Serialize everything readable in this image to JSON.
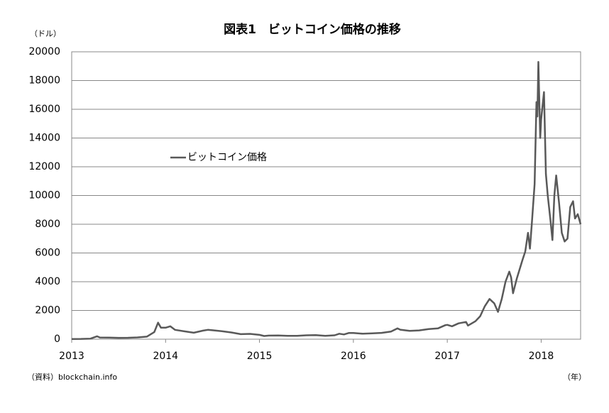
{
  "chart_data": {
    "type": "line",
    "title": "図表1　ビットコイン価格の推移",
    "y_unit": "（ドル）",
    "x_unit": "（年）",
    "source": "（資料）blockchain.info",
    "x": [
      2013.0,
      2013.1,
      2013.2,
      2013.27,
      2013.3,
      2013.4,
      2013.5,
      2013.6,
      2013.7,
      2013.8,
      2013.88,
      2013.92,
      2013.95,
      2014.0,
      2014.05,
      2014.1,
      2014.2,
      2014.3,
      2014.4,
      2014.45,
      2014.5,
      2014.6,
      2014.7,
      2014.8,
      2014.9,
      2015.0,
      2015.05,
      2015.1,
      2015.2,
      2015.3,
      2015.4,
      2015.5,
      2015.6,
      2015.7,
      2015.8,
      2015.85,
      2015.9,
      2015.95,
      2016.0,
      2016.1,
      2016.2,
      2016.3,
      2016.4,
      2016.47,
      2016.5,
      2016.6,
      2016.7,
      2016.8,
      2016.9,
      2016.98,
      2017.0,
      2017.05,
      2017.12,
      2017.2,
      2017.22,
      2017.3,
      2017.35,
      2017.4,
      2017.45,
      2017.5,
      2017.54,
      2017.58,
      2017.62,
      2017.66,
      2017.68,
      2017.7,
      2017.74,
      2017.8,
      2017.83,
      2017.86,
      2017.88,
      2017.9,
      2017.93,
      2017.95,
      2017.96,
      2017.97,
      2017.99,
      2018.0,
      2018.03,
      2018.05,
      2018.07,
      2018.1,
      2018.12,
      2018.14,
      2018.16,
      2018.19,
      2018.22,
      2018.25,
      2018.28,
      2018.31,
      2018.34,
      2018.36,
      2018.39,
      2018.42
    ],
    "series": [
      {
        "name": "ビットコイン価格",
        "color": "#595959",
        "values": [
          13,
          20,
          40,
          200,
          120,
          110,
          95,
          100,
          125,
          180,
          500,
          1150,
          800,
          800,
          900,
          650,
          550,
          450,
          600,
          650,
          620,
          560,
          470,
          350,
          370,
          300,
          220,
          250,
          260,
          230,
          235,
          270,
          280,
          235,
          270,
          380,
          330,
          430,
          430,
          380,
          410,
          440,
          530,
          750,
          660,
          580,
          610,
          700,
          750,
          980,
          1000,
          900,
          1100,
          1200,
          950,
          1250,
          1600,
          2300,
          2800,
          2500,
          1900,
          2800,
          4000,
          4700,
          4300,
          3200,
          4200,
          5500,
          6100,
          7400,
          6300,
          8000,
          10800,
          16500,
          15500,
          19300,
          14000,
          15300,
          17200,
          11500,
          10000,
          8200,
          6900,
          10000,
          11400,
          9500,
          7400,
          6800,
          7000,
          9200,
          9600,
          8400,
          8700,
          8000
        ]
      }
    ],
    "xlim": [
      2013,
      2018.42
    ],
    "xticks": [
      2013,
      2014,
      2015,
      2016,
      2017,
      2018
    ],
    "ylim": [
      0,
      20000
    ],
    "yticks": [
      0,
      2000,
      4000,
      6000,
      8000,
      10000,
      12000,
      14000,
      16000,
      18000,
      20000
    ],
    "grid": true
  }
}
